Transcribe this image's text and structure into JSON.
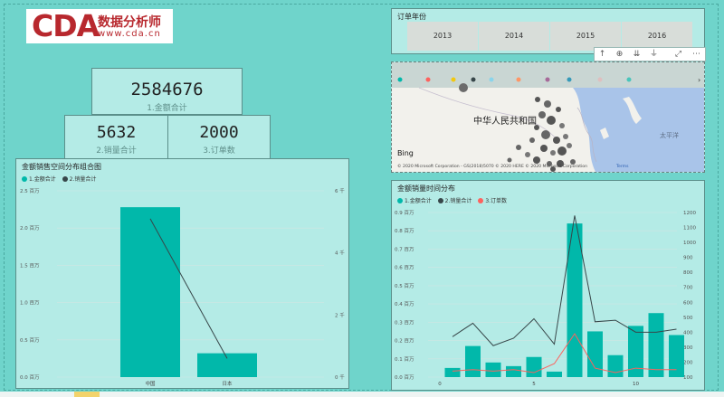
{
  "logo": {
    "brand": "CDA",
    "name_cn": "数据分析师",
    "url": "www.cda.cn"
  },
  "cards": {
    "amount": {
      "value": "2584676",
      "label": "1.金额合计"
    },
    "sales": {
      "value": "5632",
      "label": "2.销量合计"
    },
    "orders": {
      "value": "2000",
      "label": "3.订单数"
    }
  },
  "slicer": {
    "title": "订单年份",
    "years": [
      "2013",
      "2014",
      "2015",
      "2016"
    ]
  },
  "map": {
    "country_label": "中华人民共和国",
    "sea_label": "太平洋",
    "bing": "Bing",
    "copyright": "© 2020 Microsoft Corporation - GS(2018)5070 © 2020 HERE © 2020 Microsoft Corporation",
    "terms": "Terms"
  },
  "toolbar_icons": [
    "arrow-up-icon",
    "drill-down-icon",
    "expand-all-icon",
    "hierarchy-icon",
    "focus-mode-icon",
    "more-options-icon"
  ],
  "colors": {
    "teal": "#01b8aa",
    "dark": "#374649",
    "red": "#fd625e",
    "bg": "#6fd4cb",
    "panel": "#b4ebe6"
  },
  "combo_chart": {
    "title": "金额销售空间分布组合图",
    "legend": [
      "1.金额合计",
      "2.销量合计"
    ],
    "chart_data": {
      "type": "bar",
      "categories": [
        "中国",
        "日本"
      ],
      "series": [
        {
          "name": "1.金额合计",
          "values": [
            2.28,
            0.32
          ]
        },
        {
          "name": "2.销量合计",
          "values": [
            5.1,
            0.6
          ]
        }
      ],
      "y_ticks": [
        "0.0 百万",
        "0.5 百万",
        "1.0 百万",
        "1.5 百万",
        "2.0 百万",
        "2.5 百万"
      ],
      "y_ticks_right": [
        "0 千",
        "2 千",
        "4 千",
        "6 千"
      ],
      "ylim": [
        0,
        2.5
      ],
      "ylim_right": [
        0,
        6
      ]
    }
  },
  "time_chart": {
    "title": "金额销量时间分布",
    "legend": [
      "1.金额合计",
      "2.销量合计",
      "3.订单数"
    ],
    "chart_data": {
      "type": "bar",
      "x": [
        1,
        2,
        3,
        4,
        5,
        6,
        7,
        8,
        9,
        10,
        11,
        12
      ],
      "series": [
        {
          "name": "1.金额合计",
          "values": [
            0.05,
            0.17,
            0.08,
            0.06,
            0.11,
            0.03,
            0.84,
            0.25,
            0.12,
            0.28,
            0.35,
            0.23
          ]
        },
        {
          "name": "2.销量合计",
          "values": [
            370,
            460,
            310,
            360,
            490,
            320,
            1180,
            470,
            480,
            400,
            400,
            420
          ]
        },
        {
          "name": "3.订单数",
          "values": [
            140,
            150,
            140,
            150,
            130,
            190,
            390,
            160,
            130,
            160,
            150,
            150
          ]
        }
      ],
      "y_ticks": [
        "0.0 百万",
        "0.1 百万",
        "0.2 百万",
        "0.3 百万",
        "0.4 百万",
        "0.5 百万",
        "0.6 百万",
        "0.7 百万",
        "0.8 百万",
        "0.9 百万"
      ],
      "y_ticks_right": [
        "100",
        "200",
        "300",
        "400",
        "500",
        "600",
        "700",
        "800",
        "900",
        "1000",
        "1100",
        "1200"
      ],
      "x_ticks": [
        "5",
        "10"
      ],
      "ylim": [
        0,
        0.9
      ],
      "ylim_right": [
        100,
        1200
      ]
    }
  }
}
